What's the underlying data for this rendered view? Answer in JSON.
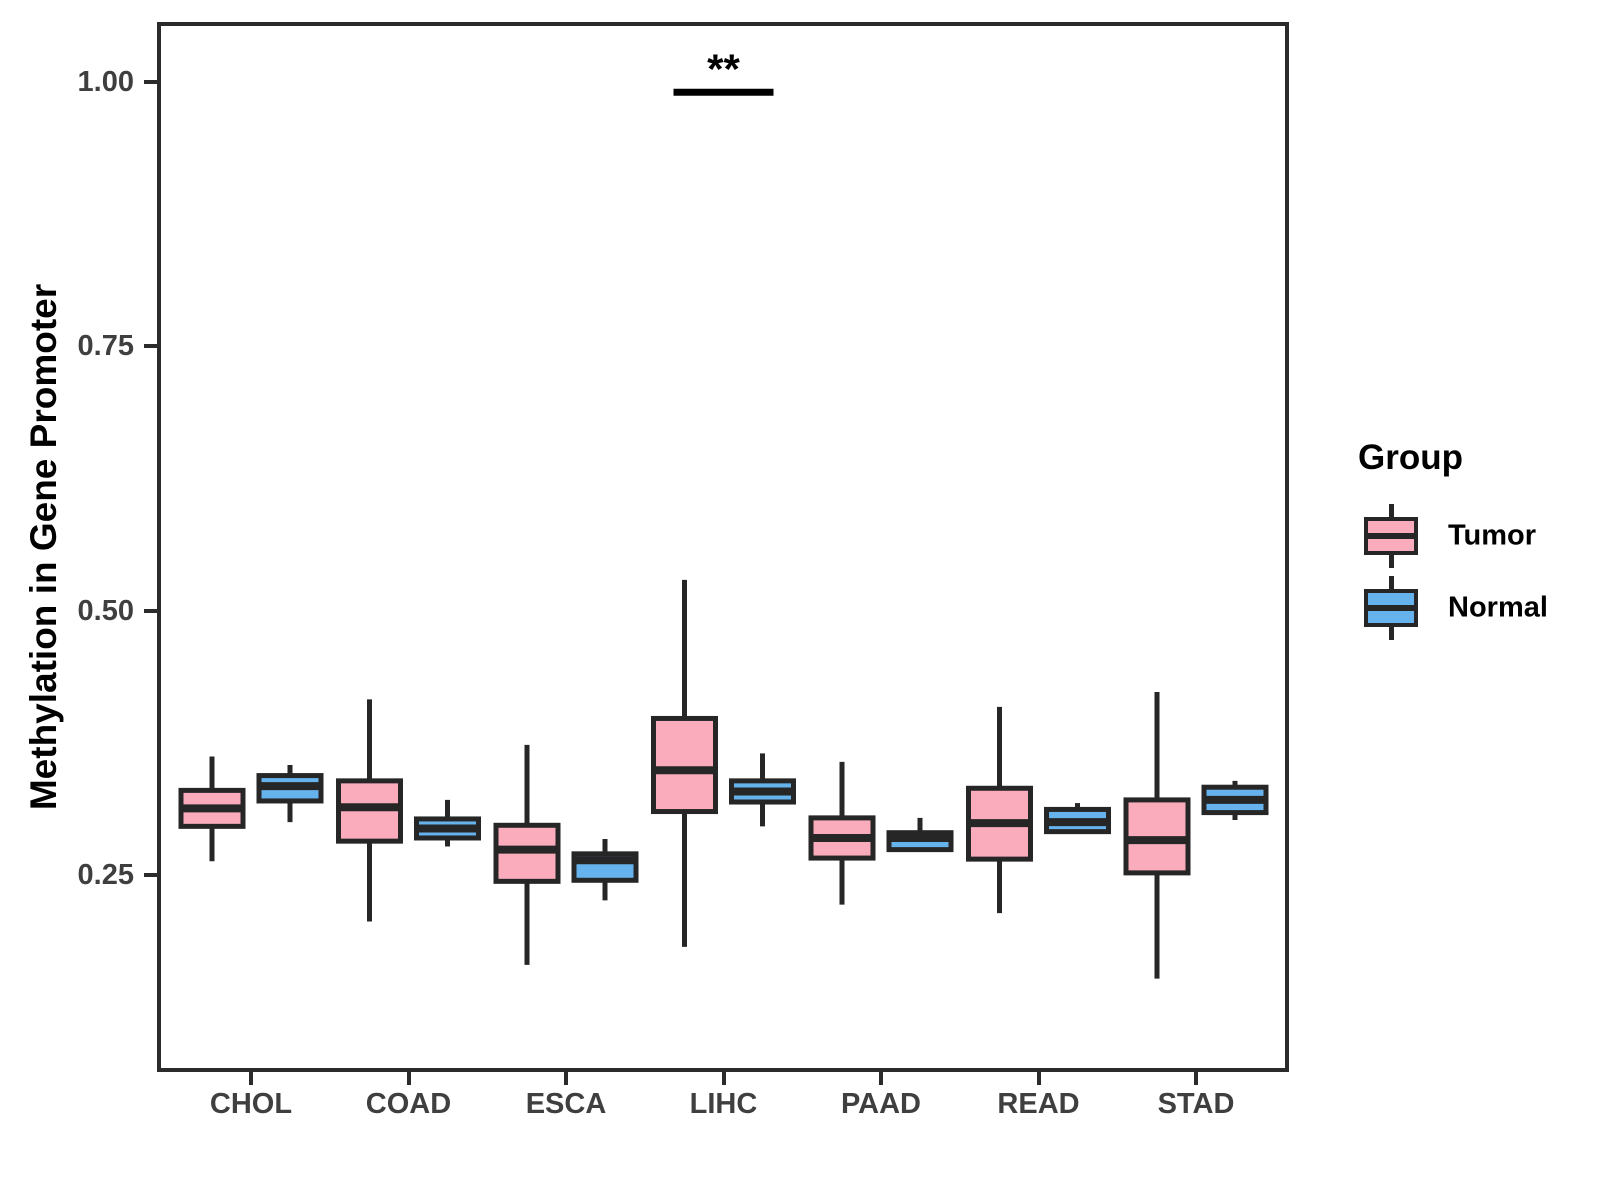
{
  "chart_data": {
    "type": "boxplot",
    "title": "",
    "xlabel": "",
    "ylabel": "Methylation in Gene Promoter",
    "categories": [
      "CHOL",
      "COAD",
      "ESCA",
      "LIHC",
      "PAAD",
      "READ",
      "STAD"
    ],
    "y_ticks": [
      0.25,
      0.5,
      0.75,
      1.0
    ],
    "y_tick_labels": [
      "0.25",
      "0.50",
      "0.75",
      "1.00"
    ],
    "ylim": [
      0.064,
      1.056
    ],
    "grid": "off",
    "legend_position": "right",
    "legend": {
      "title": "Group",
      "entries": [
        {
          "label": "Tumor",
          "color": "#FAACBC"
        },
        {
          "label": "Normal",
          "color": "#66B2EC"
        }
      ]
    },
    "series": [
      {
        "name": "Tumor",
        "color": "#FAACBC",
        "stats": [
          {
            "category": "CHOL",
            "whisker_low": 0.263,
            "q1": 0.296,
            "median": 0.313,
            "q3": 0.33,
            "whisker_high": 0.362
          },
          {
            "category": "COAD",
            "whisker_low": 0.206,
            "q1": 0.282,
            "median": 0.314,
            "q3": 0.339,
            "whisker_high": 0.416
          },
          {
            "category": "ESCA",
            "whisker_low": 0.165,
            "q1": 0.244,
            "median": 0.274,
            "q3": 0.297,
            "whisker_high": 0.373
          },
          {
            "category": "LIHC",
            "whisker_low": 0.182,
            "q1": 0.31,
            "median": 0.349,
            "q3": 0.398,
            "whisker_high": 0.529
          },
          {
            "category": "PAAD",
            "whisker_low": 0.222,
            "q1": 0.266,
            "median": 0.285,
            "q3": 0.304,
            "whisker_high": 0.357
          },
          {
            "category": "READ",
            "whisker_low": 0.214,
            "q1": 0.265,
            "median": 0.299,
            "q3": 0.332,
            "whisker_high": 0.409
          },
          {
            "category": "STAD",
            "whisker_low": 0.152,
            "q1": 0.252,
            "median": 0.283,
            "q3": 0.321,
            "whisker_high": 0.423
          }
        ]
      },
      {
        "name": "Normal",
        "color": "#66B2EC",
        "stats": [
          {
            "category": "CHOL",
            "whisker_low": 0.3,
            "q1": 0.32,
            "median": 0.334,
            "q3": 0.344,
            "whisker_high": 0.354
          },
          {
            "category": "COAD",
            "whisker_low": 0.277,
            "q1": 0.285,
            "median": 0.294,
            "q3": 0.303,
            "whisker_high": 0.321
          },
          {
            "category": "ESCA",
            "whisker_low": 0.226,
            "q1": 0.245,
            "median": 0.264,
            "q3": 0.27,
            "whisker_high": 0.284
          },
          {
            "category": "LIHC",
            "whisker_low": 0.296,
            "q1": 0.319,
            "median": 0.329,
            "q3": 0.339,
            "whisker_high": 0.365
          },
          {
            "category": "PAAD",
            "whisker_low": 0.272,
            "q1": 0.274,
            "median": 0.285,
            "q3": 0.29,
            "whisker_high": 0.304
          },
          {
            "category": "READ",
            "whisker_low": 0.289,
            "q1": 0.291,
            "median": 0.3,
            "q3": 0.312,
            "whisker_high": 0.318
          },
          {
            "category": "STAD",
            "whisker_low": 0.302,
            "q1": 0.309,
            "median": 0.321,
            "q3": 0.333,
            "whisker_high": 0.339
          }
        ]
      }
    ],
    "annotation": {
      "label": "**",
      "category": "LIHC",
      "bar_y": 0.99
    },
    "style_colors": {
      "box_border": "#262626",
      "panel_border": "#2b2b2b",
      "axis_text": "#3f3f3f"
    }
  }
}
